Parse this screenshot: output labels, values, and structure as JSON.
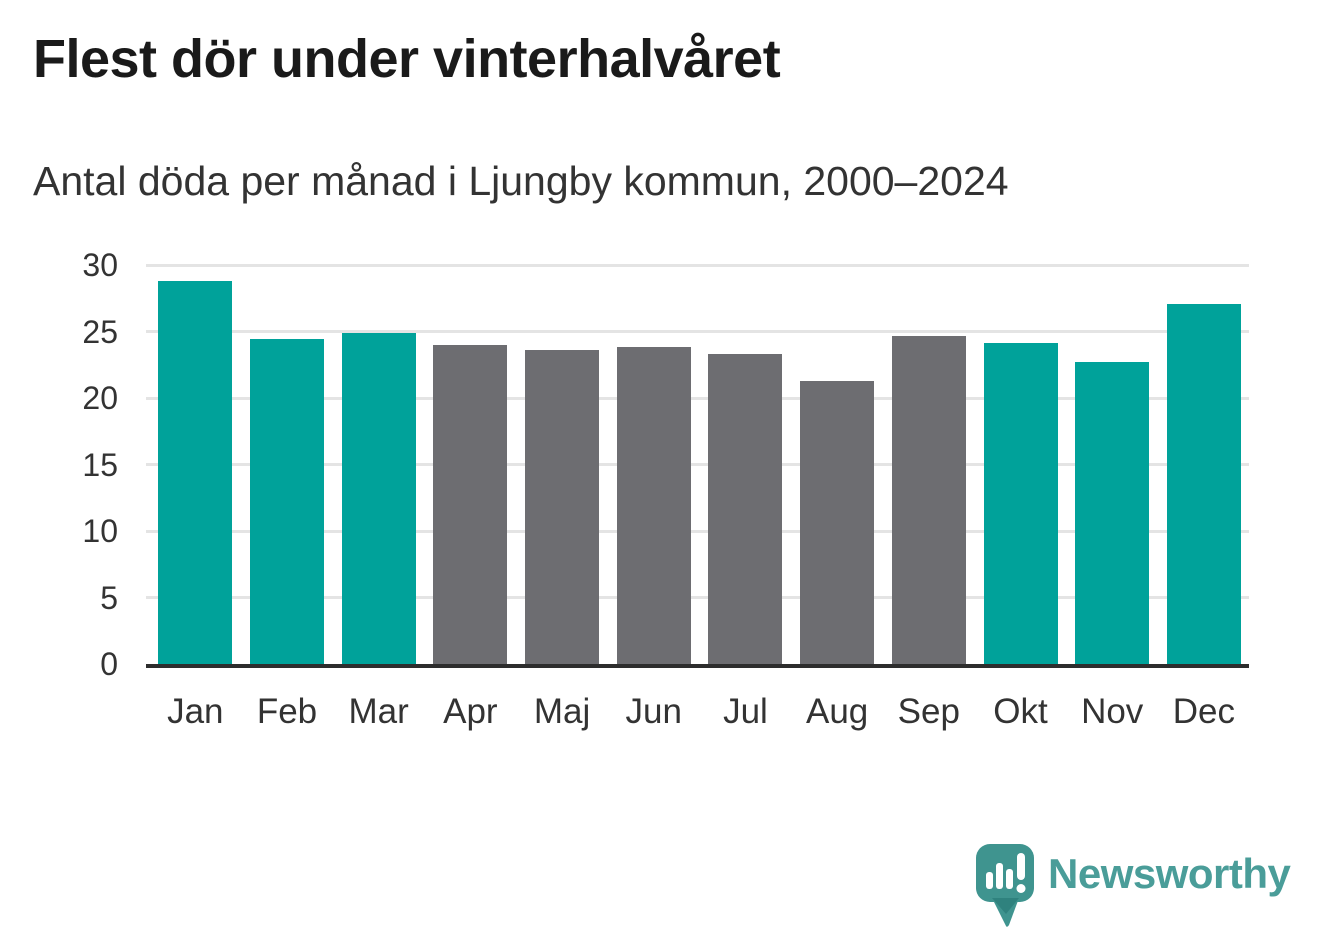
{
  "header": {
    "title": "Flest dör under vinterhalvåret",
    "subtitle": "Antal döda per månad i Ljungby kommun, 2000–2024"
  },
  "chart_data": {
    "type": "bar",
    "title": "Flest dör under vinterhalvåret",
    "subtitle": "Antal döda per månad i Ljungby kommun, 2000–2024",
    "categories": [
      "Jan",
      "Feb",
      "Mar",
      "Apr",
      "Maj",
      "Jun",
      "Jul",
      "Aug",
      "Sep",
      "Okt",
      "Nov",
      "Dec"
    ],
    "values": [
      28.8,
      24.4,
      24.9,
      24.0,
      23.6,
      23.8,
      23.3,
      21.3,
      24.7,
      24.1,
      22.7,
      27.1
    ],
    "bar_palette": {
      "winter": "#00a29a",
      "summer": "#6d6d71"
    },
    "bar_color_keys": [
      "winter",
      "winter",
      "winter",
      "summer",
      "summer",
      "summer",
      "summer",
      "summer",
      "summer",
      "winter",
      "winter",
      "winter"
    ],
    "ylim": [
      0,
      30
    ],
    "yticks": [
      0,
      5,
      10,
      15,
      20,
      25,
      30
    ],
    "xlabel": "",
    "ylabel": "",
    "grid": "horizontal",
    "legend": "none"
  },
  "branding": {
    "logo_text": "Newsworthy",
    "logo_color": "#4a9d99",
    "icon": "newsworthy-speech-bubble-chart-icon",
    "icon_color": "#3f948f"
  },
  "colors": {
    "background": "#ffffff",
    "title_text": "#1a1a1a",
    "body_text": "#333333",
    "axis": "#2d2d2d",
    "gridline": "#e4e4e4"
  }
}
